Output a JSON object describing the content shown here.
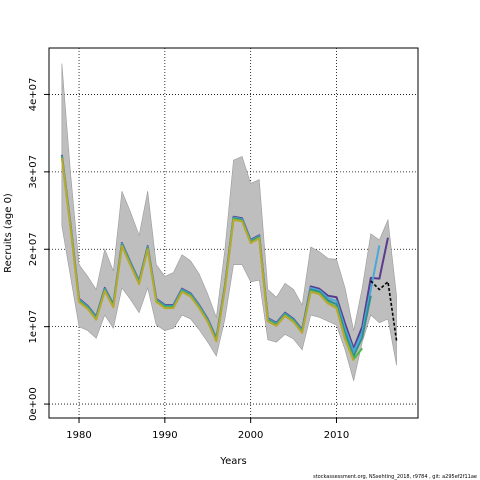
{
  "chart_data": {
    "type": "line",
    "xlabel": "Years",
    "ylabel": "Recruits (age 0)",
    "xlim": [
      1976.5,
      2019.5
    ],
    "ylim": [
      -1800000,
      46000000
    ],
    "xticks": [
      1980,
      1990,
      2000,
      2010
    ],
    "xtick_labels": [
      "1980",
      "1990",
      "2000",
      "2010"
    ],
    "yticks": [
      0,
      10000000,
      20000000,
      30000000,
      40000000
    ],
    "ytick_labels": [
      "0e+00",
      "1e+07",
      "2e+07",
      "3e+07",
      "4e+07"
    ],
    "grid": "dotted",
    "footer": "stockassessment.org, NSsehting_2018, r9784 , git: a295ef2f11ae",
    "band": {
      "x": [
        1978,
        1979,
        1980,
        1981,
        1982,
        1983,
        1984,
        1985,
        1986,
        1987,
        1988,
        1989,
        1990,
        1991,
        1992,
        1993,
        1994,
        1995,
        1996,
        1997,
        1998,
        1999,
        2000,
        2001,
        2002,
        2003,
        2004,
        2005,
        2006,
        2007,
        2008,
        2009,
        2010,
        2011,
        2012,
        2013,
        2014,
        2015,
        2016,
        2017
      ],
      "upper": [
        44000000,
        30000000,
        18000000,
        16500000,
        14800000,
        20000000,
        17200000,
        27500000,
        24800000,
        21800000,
        27500000,
        18000000,
        16500000,
        17000000,
        19300000,
        18500000,
        16800000,
        14200000,
        11200000,
        20000000,
        31500000,
        32000000,
        28500000,
        29000000,
        14800000,
        13800000,
        15600000,
        14800000,
        12800000,
        20300000,
        19700000,
        18800000,
        18700000,
        15000000,
        9500000,
        15000000,
        22000000,
        21200000,
        23800000,
        14000000
      ],
      "lower": [
        23000000,
        16500000,
        10000000,
        9500000,
        8500000,
        11500000,
        9800000,
        15000000,
        13500000,
        11800000,
        15000000,
        10200000,
        9500000,
        9800000,
        11500000,
        11000000,
        9600000,
        8000000,
        6200000,
        11000000,
        18000000,
        18000000,
        15800000,
        16000000,
        8300000,
        8000000,
        9000000,
        8400000,
        7000000,
        11500000,
        11200000,
        10700000,
        10200000,
        7000000,
        3000000,
        8000000,
        11500000,
        10500000,
        11000000,
        5000000
      ]
    },
    "series": [
      {
        "color": "#5a3a8c",
        "x": [
          1978,
          1979,
          1980,
          1981,
          1982,
          1983,
          1984,
          1985,
          1986,
          1987,
          1988,
          1989,
          1990,
          1991,
          1992,
          1993,
          1994,
          1995,
          1996,
          1997,
          1998,
          1999,
          2000,
          2001,
          2002,
          2003,
          2004,
          2005,
          2006,
          2007,
          2008,
          2009,
          2010,
          2011,
          2012,
          2013,
          2014,
          2015,
          2016
        ],
        "y": [
          32200000,
          23300000,
          13600000,
          12700000,
          11300000,
          15000000,
          12900000,
          20800000,
          18300000,
          15900000,
          20400000,
          13600000,
          12800000,
          12800000,
          14900000,
          14300000,
          12800000,
          11000000,
          8500000,
          15300000,
          24200000,
          24000000,
          21200000,
          21800000,
          11100000,
          10500000,
          11800000,
          11000000,
          9600000,
          15200000,
          14900000,
          14000000,
          13800000,
          10400000,
          7200000,
          10000000,
          16300000,
          16200000,
          21500000
        ]
      },
      {
        "color": "#4aa8d8",
        "x": [
          1978,
          1979,
          1980,
          1981,
          1982,
          1983,
          1984,
          1985,
          1986,
          1987,
          1988,
          1989,
          1990,
          1991,
          1992,
          1993,
          1994,
          1995,
          1996,
          1997,
          1998,
          1999,
          2000,
          2001,
          2002,
          2003,
          2004,
          2005,
          2006,
          2007,
          2008,
          2009,
          2010,
          2011,
          2012,
          2013,
          2014,
          2015
        ],
        "y": [
          32100000,
          23200000,
          13500000,
          12600000,
          11200000,
          14900000,
          12800000,
          20700000,
          18200000,
          15800000,
          20300000,
          13500000,
          12700000,
          12700000,
          14800000,
          14200000,
          12700000,
          10900000,
          8400000,
          15200000,
          24100000,
          23900000,
          21100000,
          21700000,
          11000000,
          10400000,
          11700000,
          10900000,
          9500000,
          15000000,
          14700000,
          13700000,
          13300000,
          9800000,
          6800000,
          9300000,
          14800000,
          20500000
        ]
      },
      {
        "color": "#2e8f8f",
        "x": [
          1978,
          1979,
          1980,
          1981,
          1982,
          1983,
          1984,
          1985,
          1986,
          1987,
          1988,
          1989,
          1990,
          1991,
          1992,
          1993,
          1994,
          1995,
          1996,
          1997,
          1998,
          1999,
          2000,
          2001,
          2002,
          2003,
          2004,
          2005,
          2006,
          2007,
          2008,
          2009,
          2010,
          2011,
          2012,
          2013,
          2014
        ],
        "y": [
          32000000,
          23100000,
          13400000,
          12500000,
          11100000,
          14800000,
          12700000,
          20600000,
          18100000,
          15700000,
          20200000,
          13400000,
          12600000,
          12600000,
          14700000,
          14100000,
          12600000,
          10800000,
          8300000,
          15100000,
          24000000,
          23800000,
          21000000,
          21600000,
          10900000,
          10300000,
          11600000,
          10800000,
          9400000,
          14800000,
          14500000,
          13400000,
          12900000,
          9200000,
          6200000,
          8600000,
          14000000
        ]
      },
      {
        "color": "#4db848",
        "x": [
          1978,
          1979,
          1980,
          1981,
          1982,
          1983,
          1984,
          1985,
          1986,
          1987,
          1988,
          1989,
          1990,
          1991,
          1992,
          1993,
          1994,
          1995,
          1996,
          1997,
          1998,
          1999,
          2000,
          2001,
          2002,
          2003,
          2004,
          2005,
          2006,
          2007,
          2008,
          2009,
          2010,
          2011,
          2012,
          2013
        ],
        "y": [
          31900000,
          23000000,
          13300000,
          12400000,
          11000000,
          14700000,
          12600000,
          20500000,
          18000000,
          15600000,
          20100000,
          13300000,
          12500000,
          12500000,
          14600000,
          14000000,
          12500000,
          10700000,
          8200000,
          15000000,
          23900000,
          23700000,
          20900000,
          21500000,
          10800000,
          10200000,
          11500000,
          10700000,
          9300000,
          14600000,
          14300000,
          13100000,
          12500000,
          8600000,
          5800000,
          7200000
        ]
      },
      {
        "color": "#b8a830",
        "x": [
          1978,
          1979,
          1980,
          1981,
          1982,
          1983,
          1984,
          1985,
          1986,
          1987,
          1988,
          1989,
          1990,
          1991,
          1992,
          1993,
          1994,
          1995,
          1996,
          1997,
          1998,
          1999,
          2000,
          2001,
          2002,
          2003,
          2004,
          2005,
          2006,
          2007,
          2008,
          2009,
          2010,
          2011,
          2012
        ],
        "y": [
          31800000,
          22900000,
          13200000,
          12300000,
          10900000,
          14600000,
          12500000,
          20400000,
          17900000,
          15500000,
          20000000,
          13200000,
          12400000,
          12400000,
          14500000,
          13900000,
          12400000,
          10600000,
          8100000,
          14900000,
          23800000,
          23600000,
          20800000,
          21400000,
          10700000,
          10100000,
          11400000,
          10600000,
          9200000,
          14500000,
          14200000,
          13000000,
          12400000,
          8400000,
          5600000
        ]
      },
      {
        "color": "#000000",
        "dash": true,
        "x": [
          2014,
          2015,
          2016,
          2017
        ],
        "y": [
          15900000,
          14800000,
          15800000,
          8200000
        ]
      }
    ]
  }
}
